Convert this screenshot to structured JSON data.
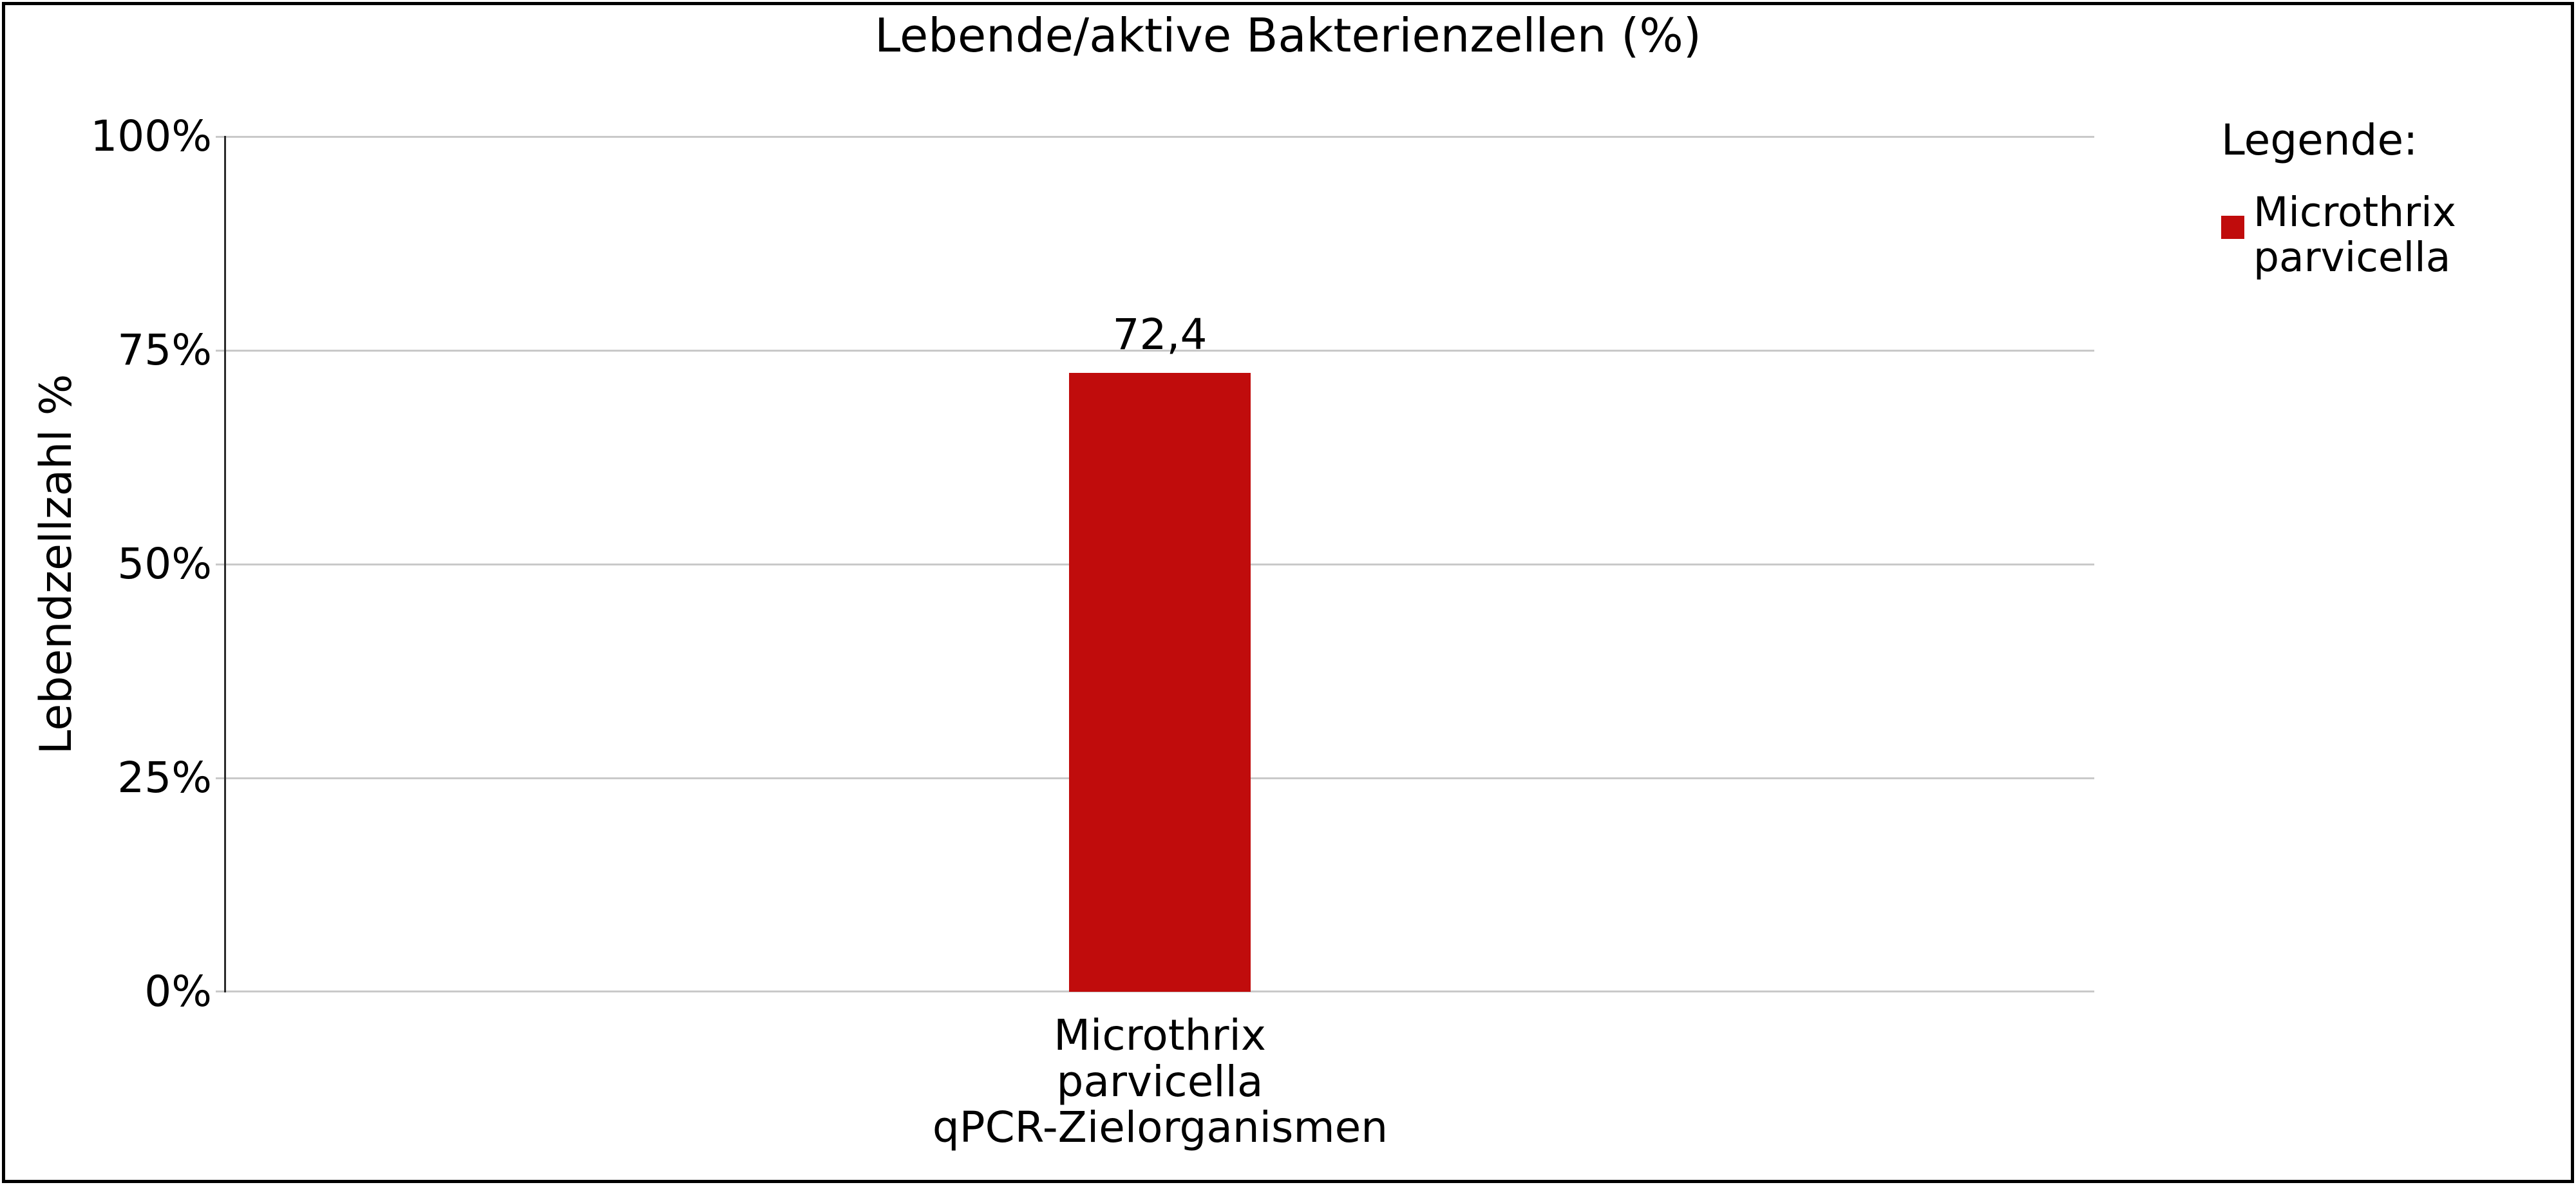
{
  "title": "Lebende/aktive Bakterienzellen (%)",
  "legend": {
    "title": "Legende:",
    "items": [
      {
        "line1": "Microthrix",
        "line2": "parvicella",
        "color": "#c00c0c"
      }
    ]
  },
  "chart_data": {
    "type": "bar",
    "title": "Lebende/aktive Bakterienzellen (%)",
    "categories": [
      "Microthrix parvicella"
    ],
    "values": [
      72.4
    ],
    "value_labels": [
      "72,4"
    ],
    "xtick_lines": [
      "Microthrix",
      "parvicella"
    ],
    "xlabel": "qPCR-Zielorganismen",
    "ylabel": "Lebendzellzahl %",
    "ylim": [
      0,
      100
    ],
    "yticks": [
      "0%",
      "25%",
      "50%",
      "75%",
      "100%"
    ],
    "bar_color": "#c00c0c",
    "gridline_color": "#c9c9c9",
    "grid": "horizontal",
    "legend_position": "right"
  }
}
